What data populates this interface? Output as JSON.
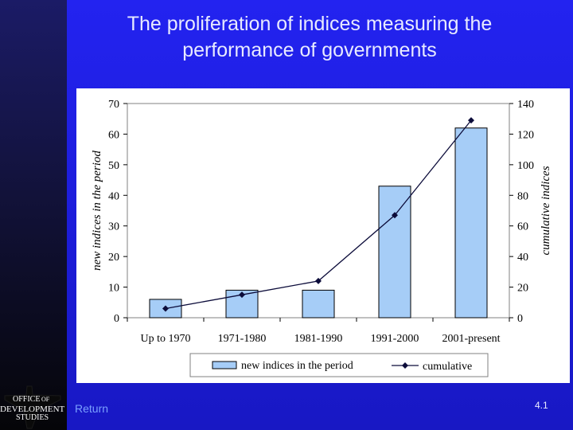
{
  "slide": {
    "title_line1": "The proliferation of indices measuring the",
    "title_line2": "performance of governments",
    "return_label": "Return",
    "page_number": "4.1",
    "logo_text": [
      "OFFICE",
      "OF",
      "DEVELOPMENT",
      "STUDIES"
    ]
  },
  "colors": {
    "bar_fill": "#a6cdf7",
    "line": "#0c0c3a",
    "background": "#2020e8"
  },
  "chart_data": {
    "type": "bar",
    "categories": [
      "Up to 1970",
      "1971-1980",
      "1981-1990",
      "1991-2000",
      "2001-present"
    ],
    "series": [
      {
        "name": "new indices in the period",
        "type": "bar",
        "axis": "left",
        "values": [
          6,
          9,
          9,
          43,
          62
        ]
      },
      {
        "name": "cumulative",
        "type": "line",
        "axis": "right",
        "values": [
          6,
          15,
          24,
          67,
          129
        ]
      }
    ],
    "ylabel": "new indices in the period",
    "y2label": "cumulative indices",
    "ylim": [
      0,
      70
    ],
    "y2lim": [
      0,
      140
    ],
    "yticks": [
      0,
      10,
      20,
      30,
      40,
      50,
      60,
      70
    ],
    "y2ticks": [
      0,
      20,
      40,
      60,
      80,
      100,
      120,
      140
    ],
    "legend_position": "bottom",
    "grid": false
  }
}
